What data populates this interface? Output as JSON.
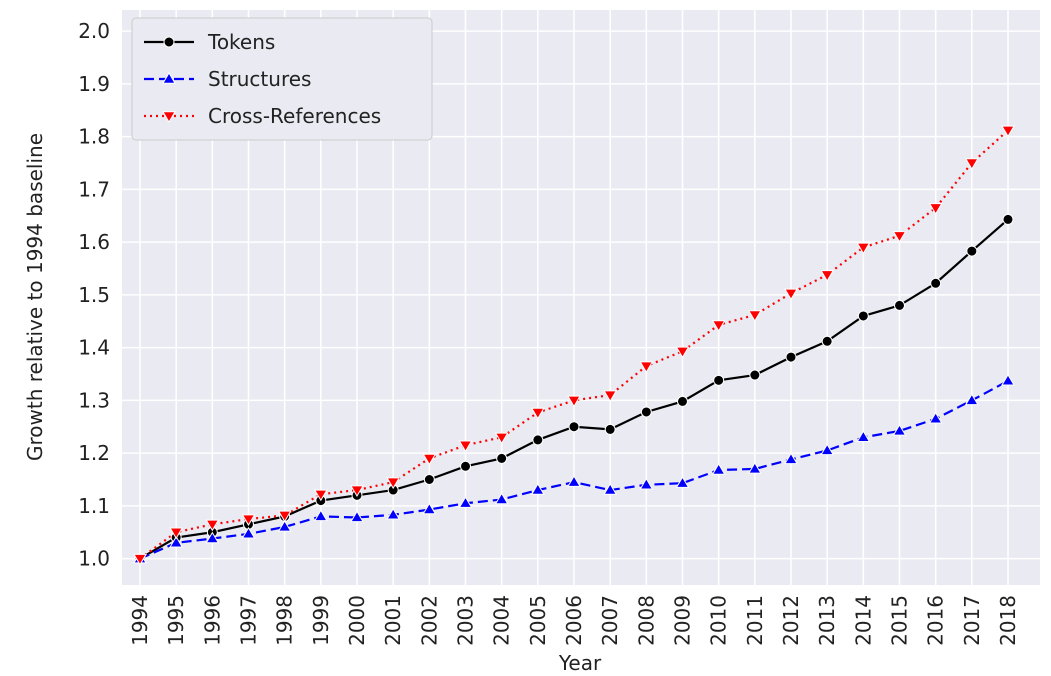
{
  "chart_data": {
    "type": "line",
    "xlabel": "Year",
    "ylabel": "Growth relative to 1994 baseline",
    "categories": [
      "1994",
      "1995",
      "1996",
      "1997",
      "1998",
      "1999",
      "2000",
      "2001",
      "2002",
      "2003",
      "2004",
      "2005",
      "2006",
      "2007",
      "2008",
      "2009",
      "2010",
      "2011",
      "2012",
      "2013",
      "2014",
      "2015",
      "2016",
      "2017",
      "2018"
    ],
    "series": [
      {
        "name": "Tokens",
        "color": "#000000",
        "values": [
          1.0,
          1.04,
          1.05,
          1.065,
          1.08,
          1.11,
          1.12,
          1.13,
          1.15,
          1.175,
          1.19,
          1.225,
          1.25,
          1.245,
          1.278,
          1.298,
          1.338,
          1.348,
          1.382,
          1.412,
          1.46,
          1.48,
          1.522,
          1.583,
          1.643
        ]
      },
      {
        "name": "Structures",
        "color": "#0000ff",
        "values": [
          1.0,
          1.03,
          1.038,
          1.047,
          1.06,
          1.08,
          1.078,
          1.083,
          1.093,
          1.105,
          1.112,
          1.13,
          1.145,
          1.13,
          1.14,
          1.143,
          1.168,
          1.17,
          1.188,
          1.205,
          1.23,
          1.242,
          1.265,
          1.3,
          1.337
        ]
      },
      {
        "name": "Cross-References",
        "color": "#ff0000",
        "values": [
          1.0,
          1.05,
          1.065,
          1.075,
          1.082,
          1.122,
          1.13,
          1.145,
          1.19,
          1.215,
          1.23,
          1.277,
          1.3,
          1.31,
          1.365,
          1.393,
          1.443,
          1.462,
          1.503,
          1.538,
          1.59,
          1.612,
          1.665,
          1.75,
          1.812
        ]
      }
    ],
    "ylim": [
      0.95,
      2.04
    ],
    "yticks": [
      {
        "value": 1.0,
        "label": "1.0"
      },
      1.1,
      1.2,
      1.3,
      1.4,
      1.5,
      1.6,
      1.7,
      1.8,
      1.9,
      {
        "value": 2.0,
        "label": "2.0"
      }
    ],
    "grid": true,
    "legend": "upper left"
  }
}
